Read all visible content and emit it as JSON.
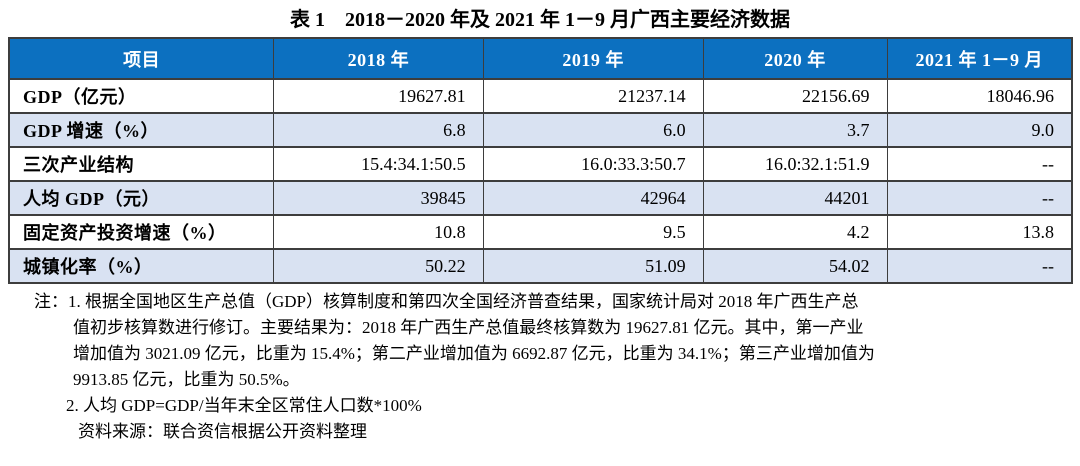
{
  "title": "表 1　2018－2020 年及 2021 年 1－9 月广西主要经济数据",
  "table": {
    "columns": [
      "项目",
      "2018 年",
      "2019 年",
      "2020 年",
      "2021 年 1－9 月"
    ],
    "rows": [
      {
        "label": "GDP（亿元）",
        "values": [
          "19627.81",
          "21237.14",
          "22156.69",
          "18046.96"
        ]
      },
      {
        "label": "GDP 增速（%）",
        "values": [
          "6.8",
          "6.0",
          "3.7",
          "9.0"
        ]
      },
      {
        "label": "三次产业结构",
        "values": [
          "15.4:34.1:50.5",
          "16.0:33.3:50.7",
          "16.0:32.1:51.9",
          "--"
        ]
      },
      {
        "label": "人均 GDP（元）",
        "values": [
          "39845",
          "42964",
          "44201",
          "--"
        ]
      },
      {
        "label": "固定资产投资增速（%）",
        "values": [
          "10.8",
          "9.5",
          "4.2",
          "13.8"
        ]
      },
      {
        "label": "城镇化率（%）",
        "values": [
          "50.22",
          "51.09",
          "54.02",
          "--"
        ]
      }
    ]
  },
  "notes": {
    "lines": [
      "注：1. 根据全国地区生产总值（GDP）核算制度和第四次全国经济普查结果，国家统计局对 2018 年广西生产总",
      "值初步核算数进行修订。主要结果为：2018 年广西生产总值最终核算数为 19627.81 亿元。其中，第一产业",
      "增加值为 3021.09 亿元，比重为 15.4%；第二产业增加值为 6692.87 亿元，比重为 34.1%；第三产业增加值为",
      "9913.85 亿元，比重为 50.5%。",
      "2. 人均 GDP=GDP/当年末全区常住人口数*100%",
      "资料来源：联合资信根据公开资料整理"
    ]
  },
  "colors": {
    "header_bg": "#0c70c0",
    "header_text": "#ffffff",
    "shaded_row_bg": "#d9e2f2",
    "border": "#3d3d3d"
  }
}
